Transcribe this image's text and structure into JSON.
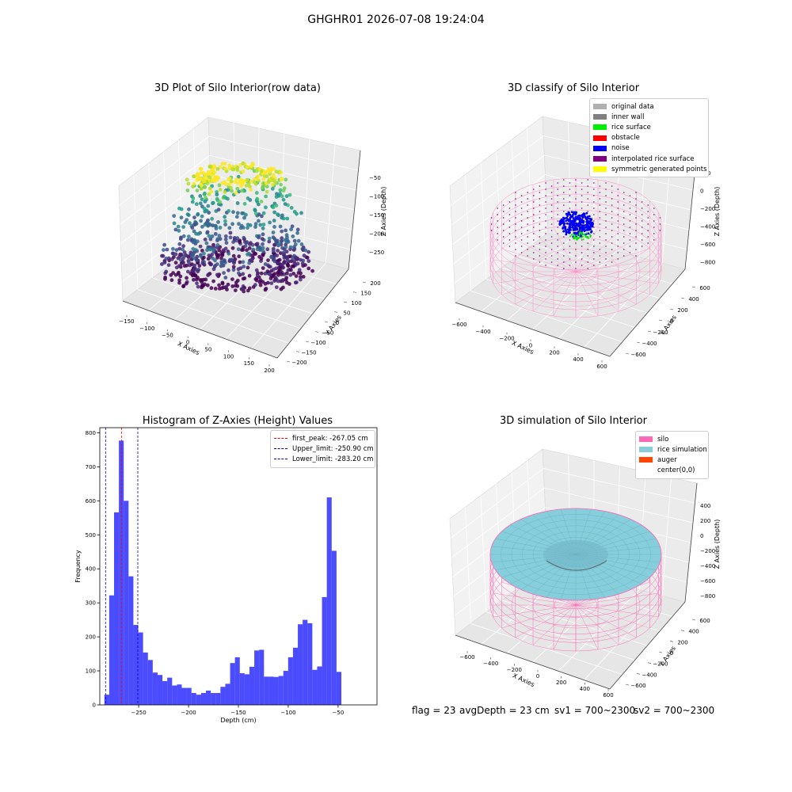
{
  "figure_title": "GHGHR01 2026-07-08 19:24:04",
  "panels": {
    "raw": {
      "title": "3D Plot of Silo Interior(row data)",
      "xlabel": "X Axies",
      "ylabel": "Y Axies",
      "zlabel": "Z Axies (Depth)",
      "xticks": [
        "−150",
        "−100",
        "−50",
        "0",
        "50",
        "100",
        "150",
        "200"
      ],
      "yticks": [
        "−200",
        "−150",
        "−100",
        "−50",
        "0",
        "50",
        "100",
        "150",
        "200"
      ],
      "zticks": [
        "−50",
        "−100",
        "−150",
        "−200",
        "−250"
      ]
    },
    "classify": {
      "title": "3D classify of Silo Interior",
      "xlabel": "X Axies",
      "ylabel": "Y Axies",
      "zlabel": "Z Axies (Depth)",
      "xticks": [
        "−600",
        "−400",
        "−200",
        "0",
        "200",
        "400",
        "600"
      ],
      "yticks": [
        "−600",
        "−400",
        "−200",
        "0",
        "200",
        "400",
        "600"
      ],
      "zticks": [
        "200",
        "0",
        "−200",
        "−400",
        "−600",
        "−800"
      ],
      "legend": [
        {
          "label": "original data",
          "color": "#b0b0b0"
        },
        {
          "label": "inner wall",
          "color": "#808080"
        },
        {
          "label": "rice surface",
          "color": "#00ee00"
        },
        {
          "label": "obstacle",
          "color": "#ff0000"
        },
        {
          "label": "noise",
          "color": "#0000ee"
        },
        {
          "label": "interpolated rice surface",
          "color": "#800080"
        },
        {
          "label": "symmetric generated points",
          "color": "#ffff00"
        }
      ]
    },
    "histogram": {
      "title": "Histogram of Z-Axies (Height) Values",
      "xlabel": "Depth (cm)",
      "ylabel": "Frequency",
      "legend": [
        {
          "label": "first_peak: -267.05 cm",
          "color": "#ff0000"
        },
        {
          "label": "Upper_limit: -250.90 cm",
          "color": "#0000cc"
        },
        {
          "label": "Lower_limit: -283.20 cm",
          "color": "#0000cc"
        }
      ]
    },
    "simulation": {
      "title": "3D simulation of Silo Interior",
      "xlabel": "X Axies",
      "ylabel": "Y Axies",
      "zlabel": "Z Axies (Depth)",
      "xticks": [
        "−600",
        "−400",
        "−200",
        "0",
        "200",
        "400",
        "600"
      ],
      "yticks": [
        "−600",
        "−400",
        "−200",
        "0",
        "200",
        "400",
        "600"
      ],
      "zticks": [
        "400",
        "200",
        "0",
        "−200",
        "−400",
        "−600",
        "−800"
      ],
      "legend": [
        {
          "label": "silo",
          "color": "#ff69b4"
        },
        {
          "label": "rice simulation",
          "color": "#87cedc"
        },
        {
          "label": "auger",
          "color": "#ff4500"
        },
        {
          "label": "center(0,0)",
          "color": "#ffffff"
        }
      ]
    }
  },
  "footer": {
    "flag": "flag = 23",
    "avg_depth": "avgDepth = 23 cm",
    "sv1": "sv1 = 700~2300",
    "sv2": "sv2 = 700~2300"
  },
  "chart_data": [
    {
      "type": "scatter",
      "title": "3D Plot of Silo Interior(row data)",
      "xlabel": "X Axies",
      "ylabel": "Y Axies",
      "zlabel": "Z Axies (Depth)",
      "xlim": [
        -160,
        200
      ],
      "ylim": [
        -200,
        200
      ],
      "zlim": [
        -290,
        -30
      ]
    },
    {
      "type": "scatter",
      "title": "3D classify of Silo Interior",
      "xlabel": "X Axies",
      "ylabel": "Y Axies",
      "zlabel": "Z Axies (Depth)",
      "xlim": [
        -700,
        700
      ],
      "ylim": [
        -700,
        700
      ],
      "zlim": [
        -900,
        300
      ]
    },
    {
      "type": "bar",
      "title": "Histogram of Z-Axies (Height) Values",
      "xlabel": "Depth (cm)",
      "ylabel": "Frequency",
      "bin_width": 4.85,
      "bin_start": -284.4,
      "values": [
        30,
        322,
        566,
        777,
        600,
        378,
        235,
        213,
        154,
        132,
        95,
        88,
        70,
        80,
        57,
        60,
        50,
        50,
        35,
        30,
        35,
        42,
        35,
        35,
        53,
        62,
        123,
        140,
        93,
        90,
        112,
        160,
        162,
        83,
        83,
        82,
        85,
        100,
        140,
        168,
        237,
        250,
        240,
        103,
        113,
        317,
        610,
        453,
        97
      ],
      "xticks": [
        -250,
        -200,
        -150,
        -100,
        -50
      ],
      "yticks": [
        0,
        100,
        200,
        300,
        400,
        500,
        600,
        700,
        800
      ],
      "xlim": [
        -289,
        -11
      ],
      "ylim": [
        0,
        815
      ],
      "vlines": [
        {
          "name": "first_peak: -267.05 cm",
          "x": -267.05,
          "color": "#ff0000"
        },
        {
          "name": "Upper_limit: -250.90 cm",
          "x": -250.9,
          "color": "#0000cc"
        },
        {
          "name": "Lower_limit: -283.20 cm",
          "x": -283.2,
          "color": "#0000cc"
        }
      ]
    },
    {
      "type": "area",
      "title": "3D simulation of Silo Interior",
      "xlabel": "X Axies",
      "ylabel": "Y Axies",
      "zlabel": "Z Axies (Depth)",
      "xlim": [
        -700,
        700
      ],
      "ylim": [
        -700,
        700
      ],
      "zlim": [
        -900,
        500
      ]
    }
  ]
}
